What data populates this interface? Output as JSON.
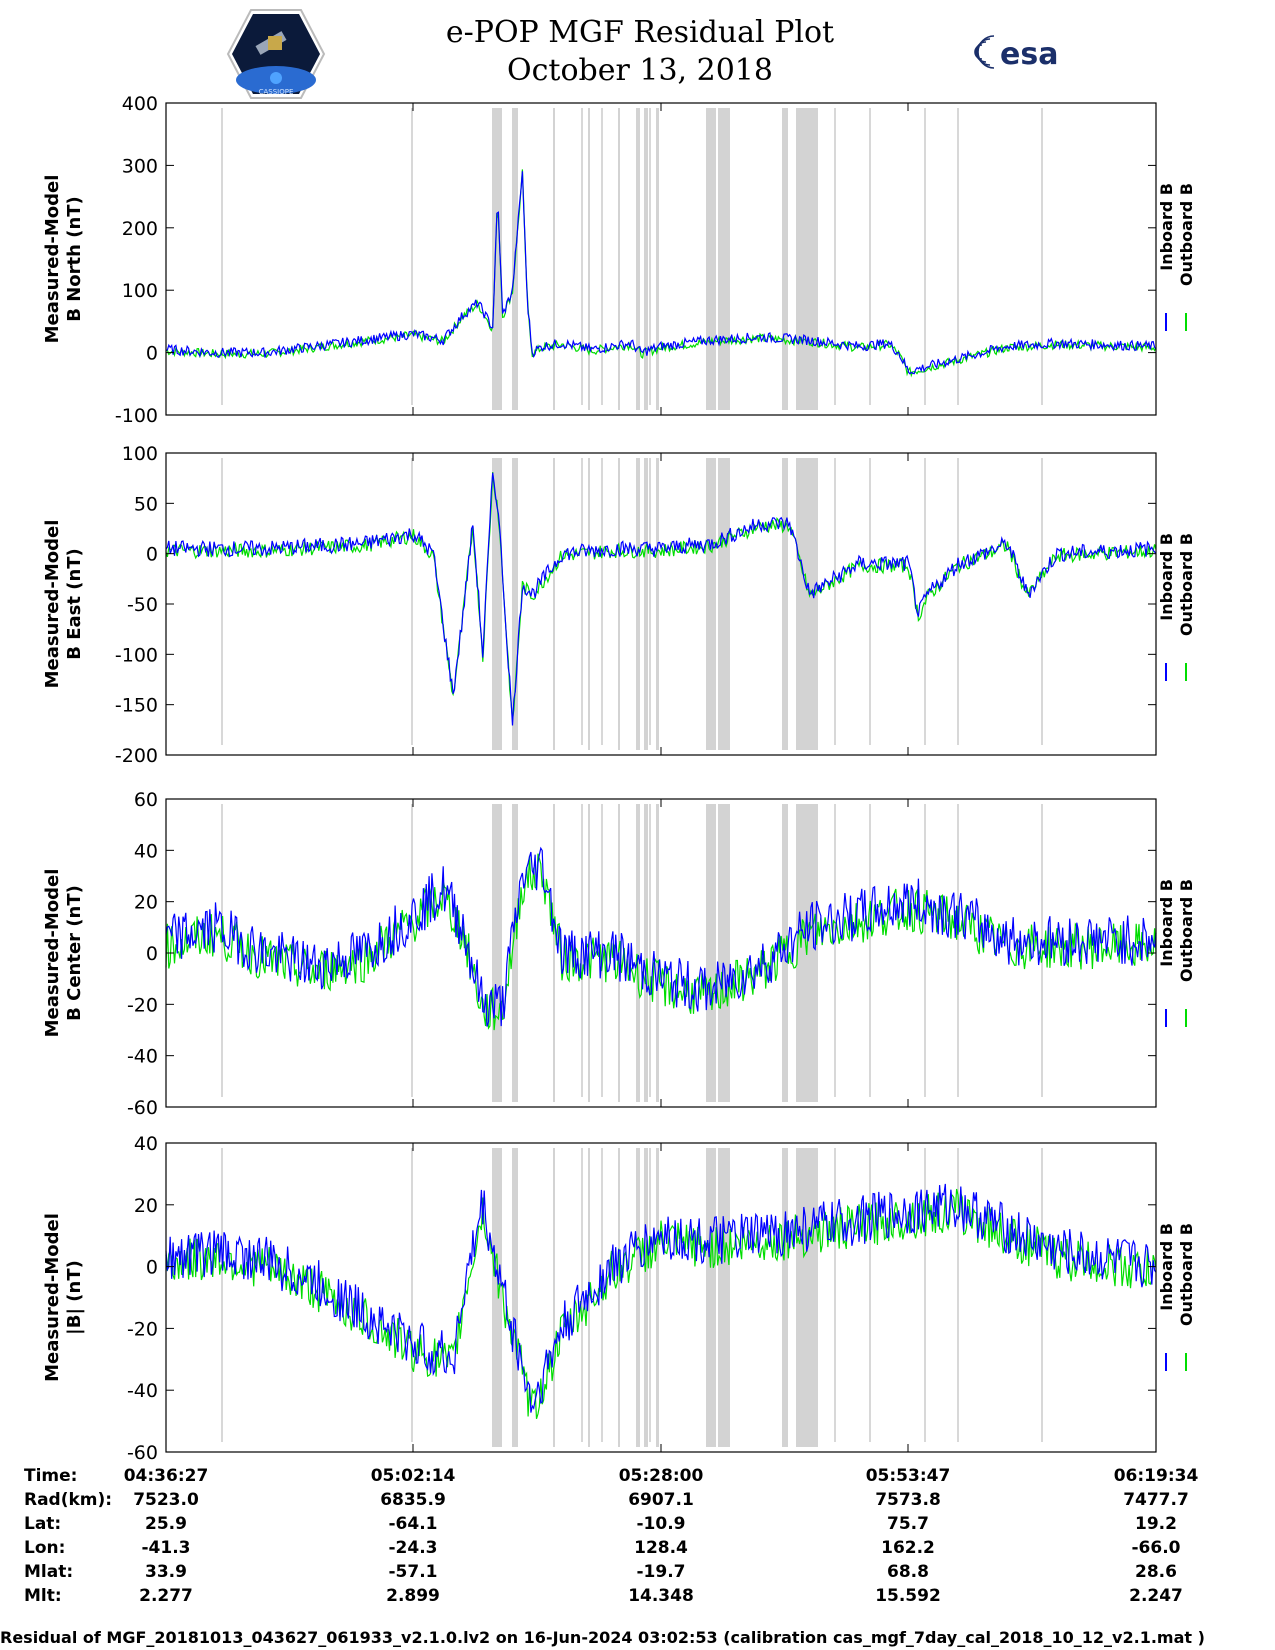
{
  "header": {
    "title_line1": "e-POP MGF Residual Plot",
    "title_line2": "October 13, 2018",
    "logo_left_icon": "cassiope-satellite-logo",
    "logo_left_text": "CASSIOPE",
    "logo_right_text": "esa"
  },
  "colors": {
    "inboard": "#0000ff",
    "outboard": "#00dd00",
    "gap": "#d3d3d3"
  },
  "chart_data": [
    {
      "type": "line",
      "ylabel": [
        "Measured-Model",
        "B North (nT)"
      ],
      "ylim": [
        -100,
        400
      ],
      "yticks": [
        "400",
        "300",
        "200",
        "100",
        "0",
        "-100"
      ],
      "series": [
        {
          "name": "Inboard B"
        },
        {
          "name": "Outboard B"
        }
      ],
      "x": [
        0,
        0.05,
        0.1,
        0.2,
        0.25,
        0.28,
        0.3,
        0.315,
        0.33,
        0.335,
        0.34,
        0.35,
        0.36,
        0.365,
        0.37,
        0.38,
        0.4,
        0.43,
        0.45,
        0.47,
        0.48,
        0.5,
        0.55,
        0.6,
        0.65,
        0.7,
        0.73,
        0.74,
        0.75,
        0.8,
        0.85,
        0.9,
        1.0
      ],
      "values": [
        5,
        0,
        0,
        20,
        30,
        20,
        60,
        80,
        40,
        250,
        60,
        100,
        290,
        80,
        0,
        10,
        15,
        5,
        10,
        15,
        0,
        10,
        20,
        25,
        20,
        10,
        15,
        0,
        -30,
        -10,
        10,
        15,
        10
      ],
      "spread": 8
    },
    {
      "type": "line",
      "ylabel": [
        "Measured-Model",
        "B East (nT)"
      ],
      "ylim": [
        -200,
        100
      ],
      "yticks": [
        "100",
        "50",
        "0",
        "-50",
        "-100",
        "-150",
        "-200"
      ],
      "series": [
        {
          "name": "Inboard B"
        },
        {
          "name": "Outboard B"
        }
      ],
      "x": [
        0,
        0.1,
        0.2,
        0.25,
        0.27,
        0.29,
        0.3,
        0.31,
        0.32,
        0.33,
        0.335,
        0.34,
        0.35,
        0.36,
        0.37,
        0.4,
        0.45,
        0.5,
        0.55,
        0.6,
        0.63,
        0.65,
        0.7,
        0.75,
        0.76,
        0.77,
        0.8,
        0.85,
        0.87,
        0.9,
        1.0
      ],
      "values": [
        5,
        5,
        10,
        20,
        0,
        -140,
        -60,
        30,
        -100,
        80,
        50,
        -20,
        -170,
        -30,
        -40,
        0,
        5,
        5,
        10,
        30,
        30,
        -40,
        -10,
        -10,
        -60,
        -40,
        -10,
        10,
        -40,
        0,
        5
      ],
      "spread": 8
    },
    {
      "type": "line",
      "ylabel": [
        "Measured-Model",
        "B Center (nT)"
      ],
      "ylim": [
        -60,
        60
      ],
      "yticks": [
        "60",
        "40",
        "20",
        "0",
        "-20",
        "-40",
        "-60"
      ],
      "series": [
        {
          "name": "Inboard B"
        },
        {
          "name": "Outboard B"
        }
      ],
      "x": [
        0,
        0.05,
        0.1,
        0.15,
        0.2,
        0.25,
        0.28,
        0.3,
        0.32,
        0.34,
        0.36,
        0.38,
        0.4,
        0.45,
        0.5,
        0.55,
        0.57,
        0.6,
        0.65,
        0.7,
        0.75,
        0.8,
        0.85,
        0.9,
        1.0
      ],
      "values": [
        5,
        10,
        0,
        -5,
        0,
        15,
        25,
        10,
        -20,
        -20,
        30,
        35,
        0,
        0,
        -10,
        -15,
        -10,
        -5,
        10,
        15,
        20,
        15,
        5,
        5,
        5
      ],
      "spread": 10
    },
    {
      "type": "line",
      "ylabel": [
        "Measured-Model",
        "|B| (nT)"
      ],
      "ylim": [
        -60,
        40
      ],
      "yticks": [
        "40",
        "20",
        "0",
        "-20",
        "-40",
        "-60"
      ],
      "series": [
        {
          "name": "Inboard B"
        },
        {
          "name": "Outboard B"
        }
      ],
      "x": [
        0,
        0.05,
        0.1,
        0.15,
        0.2,
        0.25,
        0.29,
        0.3,
        0.32,
        0.33,
        0.35,
        0.37,
        0.4,
        0.45,
        0.5,
        0.55,
        0.6,
        0.7,
        0.75,
        0.8,
        0.85,
        0.9,
        1.0
      ],
      "values": [
        3,
        5,
        2,
        -5,
        -15,
        -25,
        -30,
        -10,
        20,
        5,
        -20,
        -45,
        -20,
        0,
        10,
        8,
        10,
        15,
        18,
        20,
        12,
        5,
        0
      ],
      "spread": 8
    }
  ],
  "x_axis": {
    "rows": [
      {
        "label": "Time:",
        "values": [
          "04:36:27",
          "05:02:14",
          "05:28:00",
          "05:53:47",
          "06:19:34"
        ]
      },
      {
        "label": "Rad(km):",
        "values": [
          "7523.0",
          "6835.9",
          "6907.1",
          "7573.8",
          "7477.7"
        ]
      },
      {
        "label": "Lat:",
        "values": [
          "25.9",
          "-64.1",
          "-10.9",
          "75.7",
          "19.2"
        ]
      },
      {
        "label": "Lon:",
        "values": [
          "-41.3",
          "-24.3",
          "128.4",
          "162.2",
          "-66.0"
        ]
      },
      {
        "label": "Mlat:",
        "values": [
          "33.9",
          "-57.1",
          "-19.7",
          "68.8",
          "28.6"
        ]
      },
      {
        "label": "Mlt:",
        "values": [
          "2.277",
          "2.899",
          "14.348",
          "15.592",
          "2.247"
        ]
      }
    ]
  },
  "footer": "Residual of MGF_20181013_043627_061933_v2.1.0.lv2 on 16-Jun-2024 03:02:53 (calibration cas_mgf_7day_cal_2018_10_12_v2.1.mat )"
}
